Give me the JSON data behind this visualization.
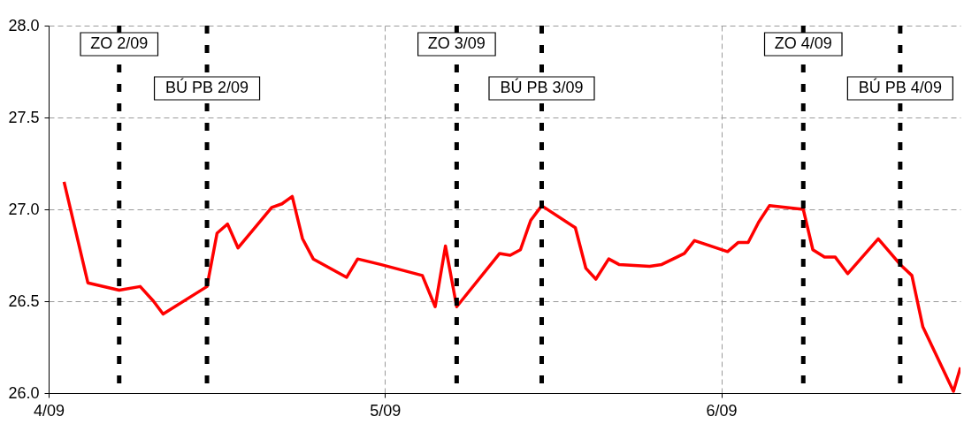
{
  "chart_data": {
    "type": "line",
    "x": [
      "--09-04T01:06",
      "--09-04T02:48",
      "--09-04T05:02",
      "--09-04T06:32",
      "--09-04T07:29",
      "--09-04T08:10",
      "--09-04T11:18",
      "--09-04T12:01",
      "--09-04T12:46",
      "--09-04T13:31",
      "--09-04T15:55",
      "--09-04T16:39",
      "--09-04T17:23",
      "--09-04T18:07",
      "--09-04T18:53",
      "--09-04T21:16",
      "--09-04T22:03",
      "--09-04T23:41",
      "--09-05T02:40",
      "--09-05T03:35",
      "--09-05T04:19",
      "--09-05T05:07",
      "--09-05T08:11",
      "--09-05T08:56",
      "--09-05T09:40",
      "--09-05T10:24",
      "--09-05T11:11",
      "--09-05T13:35",
      "--09-05T14:20",
      "--09-05T15:03",
      "--09-05T15:58",
      "--09-05T16:42",
      "--09-05T18:53",
      "--09-05T19:45",
      "--09-05T20:34",
      "--09-05T21:22",
      "--09-05T22:05",
      "--09-06T00:27",
      "--09-06T01:13",
      "--09-06T01:55",
      "--09-06T02:40",
      "--09-06T03:26",
      "--09-06T05:51",
      "--09-06T06:32",
      "--09-06T07:22",
      "--09-06T08:08",
      "--09-06T09:01",
      "--09-06T11:12",
      "--09-06T12:46",
      "--09-06T13:36",
      "--09-06T14:23",
      "--09-06T16:34",
      "--09-06T17:04"
    ],
    "series": [
      {
        "color": "#ff0000",
        "values": [
          27.15,
          26.6,
          26.56,
          26.58,
          26.5,
          26.43,
          26.58,
          26.87,
          26.92,
          26.79,
          27.01,
          27.03,
          27.07,
          26.84,
          26.73,
          26.63,
          26.73,
          26.7,
          26.64,
          26.47,
          26.8,
          26.47,
          26.76,
          26.75,
          26.78,
          26.94,
          27.02,
          26.9,
          26.68,
          26.62,
          26.73,
          26.7,
          26.69,
          26.7,
          26.73,
          26.76,
          26.83,
          26.77,
          26.82,
          26.82,
          26.93,
          27.02,
          27.0,
          26.78,
          26.74,
          26.74,
          26.65,
          26.84,
          26.7,
          26.64,
          26.36,
          26.01,
          26.14
        ]
      }
    ],
    "xlim": [
      "--09-04T00:00",
      "--09-06T17:04"
    ],
    "xticks": [
      {
        "value": "--09-04",
        "label": "4/09"
      },
      {
        "value": "--09-05",
        "label": "5/09"
      },
      {
        "value": "--09-06",
        "label": "6/09"
      }
    ],
    "ylim": [
      26,
      28
    ],
    "yticks": [
      {
        "value": 26,
        "label": "26.0"
      },
      {
        "value": 26.5,
        "label": "26.5"
      },
      {
        "value": 27,
        "label": "27.0"
      },
      {
        "value": 27.5,
        "label": "27.5"
      },
      {
        "value": 28,
        "label": "28.0"
      }
    ],
    "grid": true,
    "marker": "none",
    "line_style": "solid",
    "ref_lines": [
      {
        "axis": "x",
        "value": "--09-04T05:02",
        "label": "ZO 2/09",
        "color": "#000000",
        "line_style": "dashed"
      },
      {
        "axis": "x",
        "value": "--09-04T11:18",
        "label": "BÚ PB 2/09",
        "color": "#000000",
        "line_style": "dashed"
      },
      {
        "axis": "x",
        "value": "--09-05T05:07",
        "label": "ZO 3/09",
        "color": "#000000",
        "line_style": "dashed"
      },
      {
        "axis": "x",
        "value": "--09-05T11:11",
        "label": "BÚ PB 3/09",
        "color": "#000000",
        "line_style": "dashed"
      },
      {
        "axis": "x",
        "value": "--09-06T05:51",
        "label": "ZO 4/09",
        "color": "#000000",
        "line_style": "dashed"
      },
      {
        "axis": "x",
        "value": "--09-06T12:46",
        "label": "BÚ PB 4/09",
        "color": "#000000",
        "line_style": "dashed"
      }
    ]
  }
}
